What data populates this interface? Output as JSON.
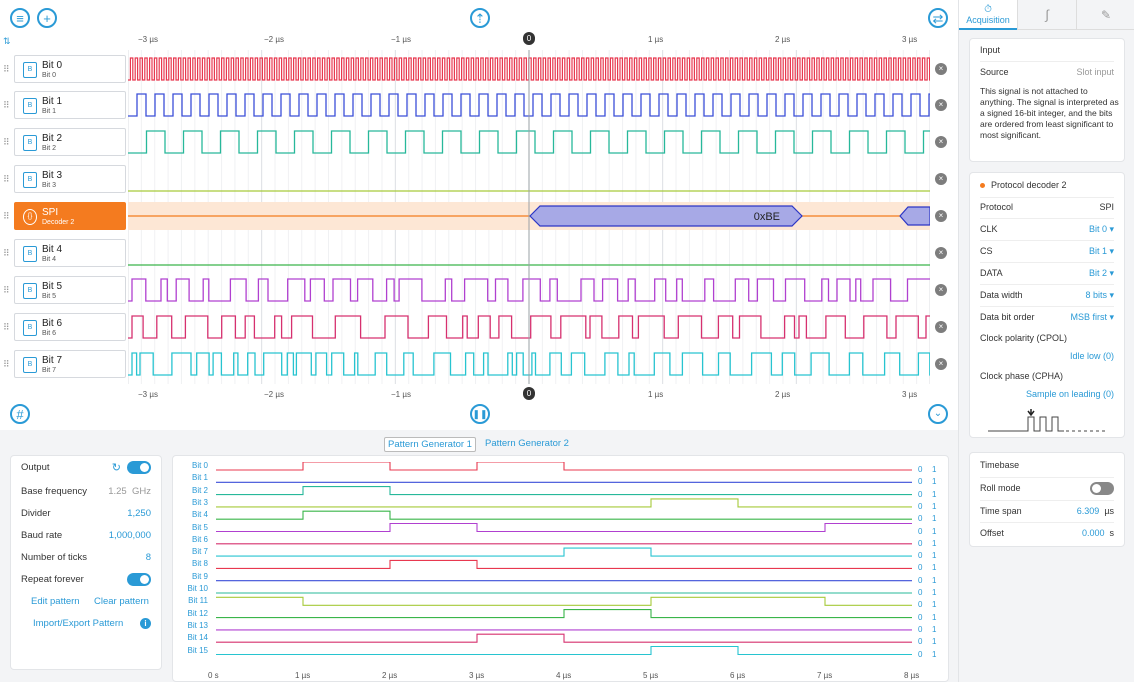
{
  "toolbar": {
    "menu_icon": "menu-icon",
    "add_icon": "plus-icon",
    "cloud_icon": "cloud-upload-icon",
    "swap_icon": "swap-icon",
    "sort_icon": "sort-icon",
    "grid_icon": "grid-icon",
    "pause_icon": "pause-icon",
    "collapse_icon": "chevron-down-icon"
  },
  "ruler": {
    "ticks": [
      "−3 µs",
      "−2 µs",
      "−1 µs",
      "1 µs",
      "2 µs",
      "3 µs"
    ],
    "zero": "0"
  },
  "channels": [
    {
      "name": "Bit 0",
      "sub": "Bit 0",
      "color": "#e8384f"
    },
    {
      "name": "Bit 1",
      "sub": "Bit 1",
      "color": "#3b4fd8"
    },
    {
      "name": "Bit 2",
      "sub": "Bit 2",
      "color": "#27b89a"
    },
    {
      "name": "Bit 3",
      "sub": "Bit 3",
      "color": "#a6c93a"
    },
    {
      "name": "SPI",
      "sub": "Decoder 2",
      "color": "#f47b1f"
    },
    {
      "name": "Bit 4",
      "sub": "Bit 4",
      "color": "#3ab54a"
    },
    {
      "name": "Bit 5",
      "sub": "Bit 5",
      "color": "#b040d0"
    },
    {
      "name": "Bit 6",
      "sub": "Bit 6",
      "color": "#d6306f"
    },
    {
      "name": "Bit 7",
      "sub": "Bit 7",
      "color": "#27c4d0"
    }
  ],
  "spi_value": "0xBE",
  "pattern_tabs": [
    "Pattern Generator 1",
    "Pattern Generator 2"
  ],
  "generator": {
    "output_label": "Output",
    "base_frequency_label": "Base frequency",
    "base_frequency_value": "1.25",
    "base_frequency_unit": "GHz",
    "divider_label": "Divider",
    "divider_value": "1,250",
    "baud_rate_label": "Baud rate",
    "baud_rate_value": "1,000,000",
    "ticks_label": "Number of ticks",
    "ticks_value": "8",
    "repeat_label": "Repeat forever",
    "edit_pattern": "Edit pattern",
    "clear_pattern": "Clear pattern",
    "import_export": "Import/Export Pattern"
  },
  "pattern": {
    "bits": [
      "Bit 0",
      "Bit 1",
      "Bit 2",
      "Bit 3",
      "Bit 4",
      "Bit 5",
      "Bit 6",
      "Bit 7",
      "Bit 8",
      "Bit 9",
      "Bit 10",
      "Bit 11",
      "Bit 12",
      "Bit 13",
      "Bit 14",
      "Bit 15"
    ],
    "zero": "0",
    "one": "1",
    "xticks": [
      "0 s",
      "1 µs",
      "2 µs",
      "3 µs",
      "4 µs",
      "5 µs",
      "6 µs",
      "7 µs",
      "8 µs"
    ]
  },
  "sidebar": {
    "tabs": [
      "Acquisition"
    ],
    "input_title": "Input",
    "source_label": "Source",
    "source_value": "Slot input",
    "note": "This signal is not attached to anything. The signal is interpreted as a signed 16-bit integer, and the bits are ordered from least significant to most significant.",
    "decoder_title": "Protocol decoder 2",
    "protocol_label": "Protocol",
    "protocol_value": "SPI",
    "clk_label": "CLK",
    "clk_value": "Bit 0",
    "cs_label": "CS",
    "cs_value": "Bit 1",
    "data_label": "DATA",
    "data_value": "Bit 2",
    "width_label": "Data width",
    "width_value": "8 bits",
    "order_label": "Data bit order",
    "order_value": "MSB first",
    "cpol_label": "Clock polarity (CPOL)",
    "cpol_value": "Idle low (0)",
    "cpha_label": "Clock phase (CPHA)",
    "cpha_value": "Sample on leading (0)",
    "timebase_title": "Timebase",
    "roll_label": "Roll mode",
    "span_label": "Time span",
    "span_value": "6.309",
    "span_unit": "µs",
    "offset_label": "Offset",
    "offset_value": "0.000",
    "offset_unit": "s"
  }
}
